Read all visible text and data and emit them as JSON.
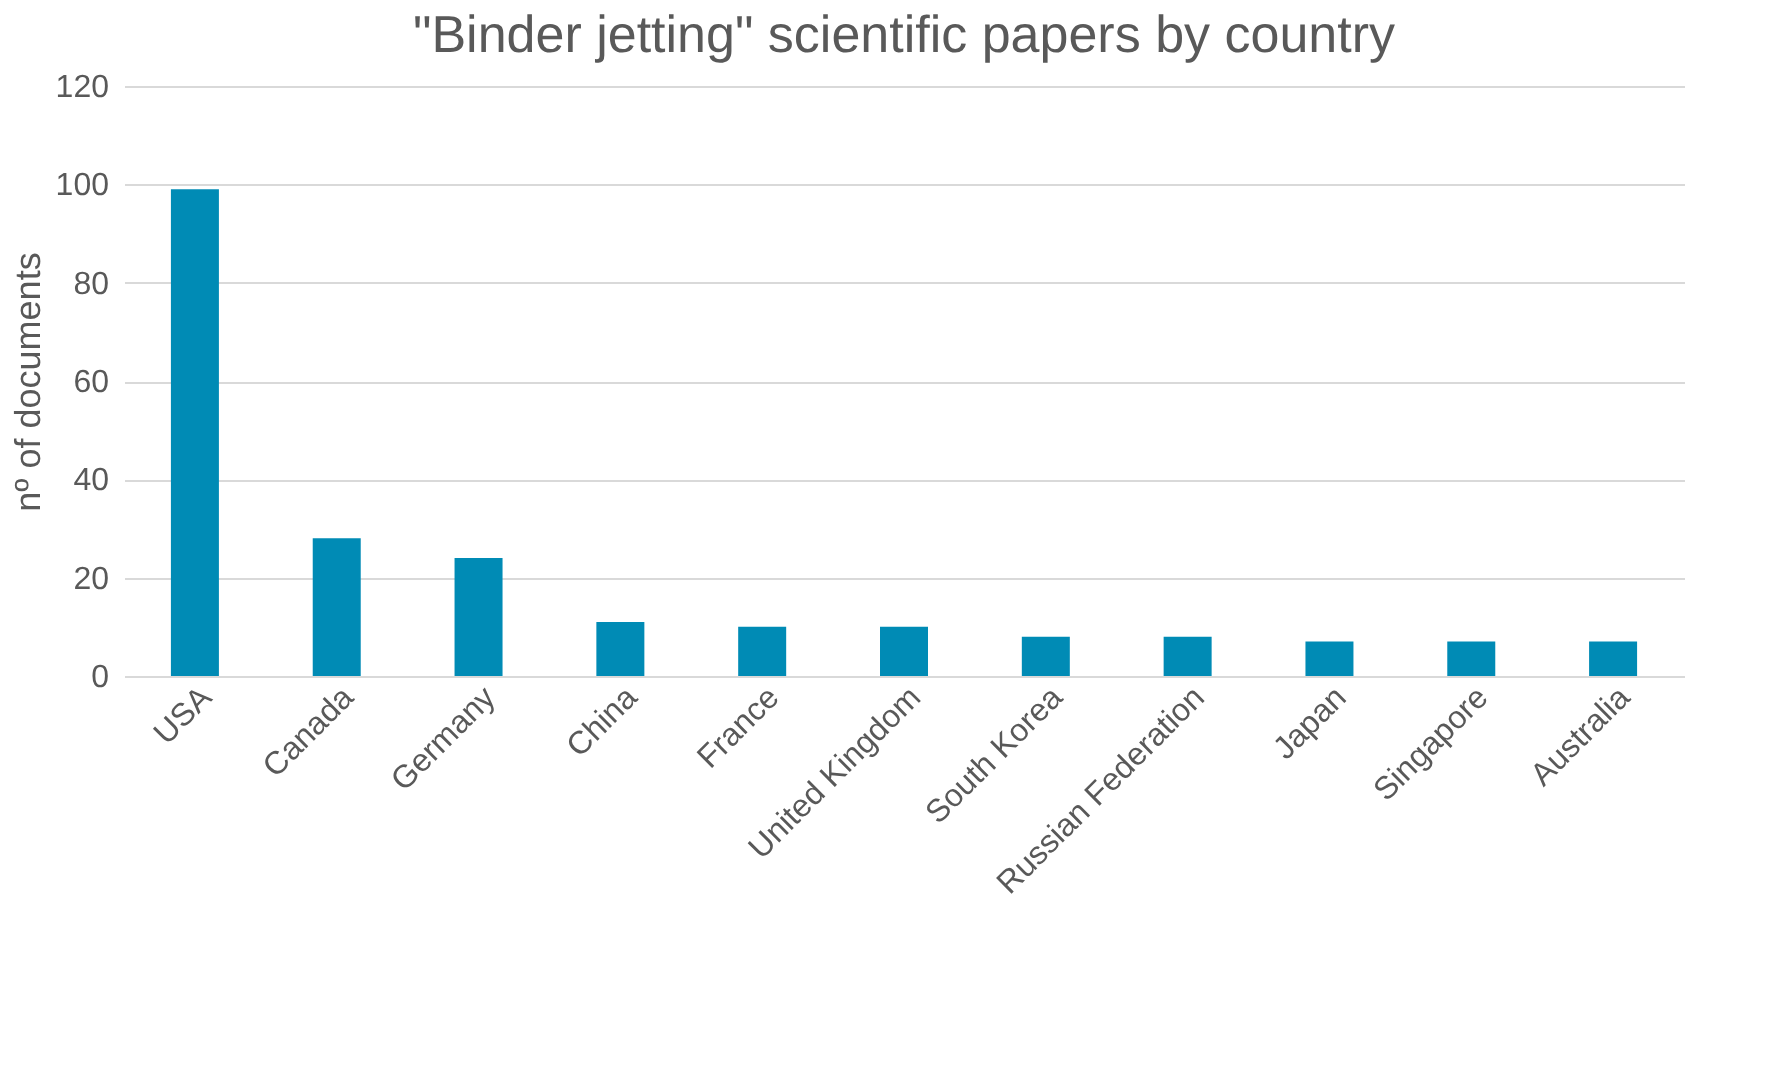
{
  "chart_data": {
    "type": "bar",
    "title": "\"Binder jetting\" scientific papers by country",
    "ylabel": "nº of documents",
    "categories": [
      "USA",
      "Canada",
      "Germany",
      "China",
      "France",
      "United Kingdom",
      "South Korea",
      "Russian Federation",
      "Japan",
      "Singapore",
      "Australia"
    ],
    "values": [
      99,
      28,
      24,
      11,
      10,
      10,
      8,
      8,
      7,
      7,
      7
    ],
    "color": "#008bb5",
    "ylim": [
      0,
      120
    ],
    "yticks": [
      0,
      20,
      40,
      60,
      80,
      100,
      120
    ],
    "grid": "y"
  }
}
